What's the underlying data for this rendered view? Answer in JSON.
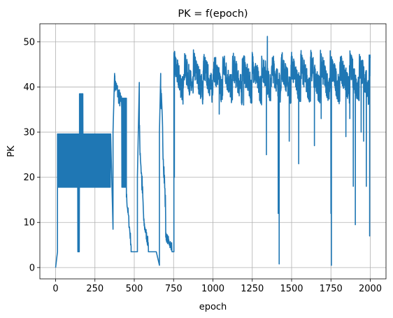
{
  "chart_data": {
    "type": "line",
    "title": "PK = f(epoch)",
    "xlabel": "epoch",
    "ylabel": "PK",
    "xlim": [
      -100,
      2100
    ],
    "ylim": [
      -2.5,
      54
    ],
    "xticks": [
      0,
      250,
      500,
      750,
      1000,
      1250,
      1500,
      1750,
      2000
    ],
    "yticks": [
      0,
      10,
      20,
      30,
      40,
      50
    ],
    "grid": true,
    "line_color": "#1f77b4",
    "series": [
      {
        "segments": [
          {
            "x0": 0,
            "x1": 12,
            "kind": "ramp",
            "from": 0,
            "to": 3.5
          },
          {
            "x0": 12,
            "x1": 140,
            "kind": "square",
            "lo": 17.8,
            "hi": 29.6
          },
          {
            "x0": 140,
            "x1": 152,
            "kind": "square",
            "lo": 3.5,
            "hi": 29.6
          },
          {
            "x0": 152,
            "x1": 175,
            "kind": "square",
            "lo": 17.8,
            "hi": 38.5
          },
          {
            "x0": 175,
            "x1": 350,
            "kind": "square",
            "lo": 17.8,
            "hi": 29.6
          },
          {
            "x0": 350,
            "x1": 365,
            "kind": "ramp",
            "from": 29.6,
            "to": 8.5
          },
          {
            "x0": 365,
            "x1": 375,
            "kind": "ramp",
            "from": 30,
            "to": 43
          },
          {
            "x0": 375,
            "x1": 420,
            "kind": "decay",
            "from": 41,
            "to": 36,
            "noise": 2
          },
          {
            "x0": 420,
            "x1": 450,
            "kind": "square",
            "lo": 17.8,
            "hi": 37.5
          },
          {
            "x0": 450,
            "x1": 480,
            "kind": "decay",
            "from": 16,
            "to": 5,
            "noise": 1.2
          },
          {
            "x0": 480,
            "x1": 520,
            "kind": "flat",
            "value": 3.5
          },
          {
            "x0": 520,
            "x1": 532,
            "kind": "ramp",
            "from": 20,
            "to": 41
          },
          {
            "x0": 532,
            "x1": 560,
            "kind": "decay",
            "from": 30,
            "to": 11,
            "noise": 3
          },
          {
            "x0": 560,
            "x1": 590,
            "kind": "decay",
            "from": 10,
            "to": 5,
            "noise": 1.2
          },
          {
            "x0": 590,
            "x1": 640,
            "kind": "flat",
            "value": 3.5
          },
          {
            "x0": 640,
            "x1": 660,
            "kind": "ramp",
            "from": 3.5,
            "to": 0.5
          },
          {
            "x0": 660,
            "x1": 668,
            "kind": "ramp",
            "from": 30,
            "to": 43
          },
          {
            "x0": 668,
            "x1": 700,
            "kind": "decay",
            "from": 40,
            "to": 12,
            "noise": 3
          },
          {
            "x0": 700,
            "x1": 740,
            "kind": "decay",
            "from": 7,
            "to": 4.5,
            "noise": 1
          },
          {
            "x0": 740,
            "x1": 752,
            "kind": "flat",
            "value": 3.5
          },
          {
            "x0": 752,
            "x1": 2000,
            "kind": "oscillating",
            "base": 42,
            "noise": 3.2,
            "period": 62
          }
        ],
        "dips": [
          {
            "x": 755,
            "value": 20
          },
          {
            "x": 800,
            "value": 38
          },
          {
            "x": 1040,
            "value": 34
          },
          {
            "x": 1195,
            "value": 36
          },
          {
            "x": 1340,
            "value": 25
          },
          {
            "x": 1346,
            "value": 51.2
          },
          {
            "x": 1415,
            "value": 12
          },
          {
            "x": 1421,
            "value": 0.8
          },
          {
            "x": 1485,
            "value": 28
          },
          {
            "x": 1545,
            "value": 23
          },
          {
            "x": 1645,
            "value": 27
          },
          {
            "x": 1688,
            "value": 33
          },
          {
            "x": 1750,
            "value": 12
          },
          {
            "x": 1753,
            "value": 0.5
          },
          {
            "x": 1800,
            "value": 37
          },
          {
            "x": 1845,
            "value": 29
          },
          {
            "x": 1870,
            "value": 33
          },
          {
            "x": 1892,
            "value": 18
          },
          {
            "x": 1905,
            "value": 9.5
          },
          {
            "x": 1942,
            "value": 30
          },
          {
            "x": 1958,
            "value": 28
          },
          {
            "x": 1975,
            "value": 18
          },
          {
            "x": 1996,
            "value": 7
          }
        ]
      }
    ]
  }
}
